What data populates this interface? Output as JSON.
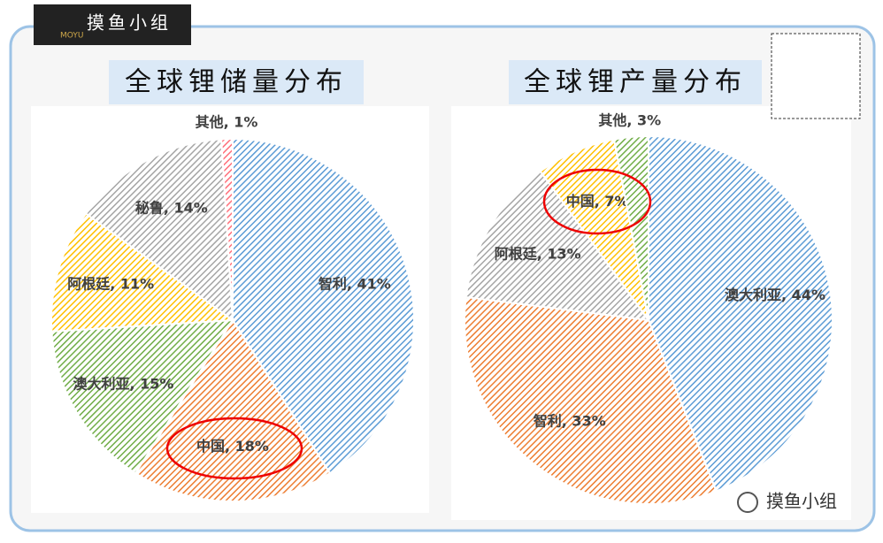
{
  "header": {
    "logo_text": "摸鱼小组",
    "logo_sub": "MOYU"
  },
  "footer": {
    "text": "摸鱼小组"
  },
  "chart_data": [
    {
      "type": "pie",
      "title": "全球锂储量分布",
      "values": [
        41,
        18,
        15,
        11,
        14,
        1
      ],
      "value_labels": [
        "智利, 41%",
        "中国, 18%",
        "澳大利亚, 15%",
        "阿根廷, 11%",
        "秘鲁, 14%",
        "其他, 1%"
      ],
      "colors": [
        "#5b9bd5",
        "#ed7d31",
        "#70ad47",
        "#ffc000",
        "#a5a5a5",
        "#ff6f7a"
      ]
    },
    {
      "type": "pie",
      "title": "全球锂产量分布",
      "values": [
        44,
        33,
        13,
        7,
        3
      ],
      "value_labels": [
        "澳大利亚, 44%",
        "智利, 33%",
        "阿根廷, 13%",
        "中国, 7%",
        "其他, 3%"
      ],
      "colors": [
        "#5b9bd5",
        "#ed7d31",
        "#a5a5a5",
        "#ffc000",
        "#70ad47"
      ]
    }
  ]
}
